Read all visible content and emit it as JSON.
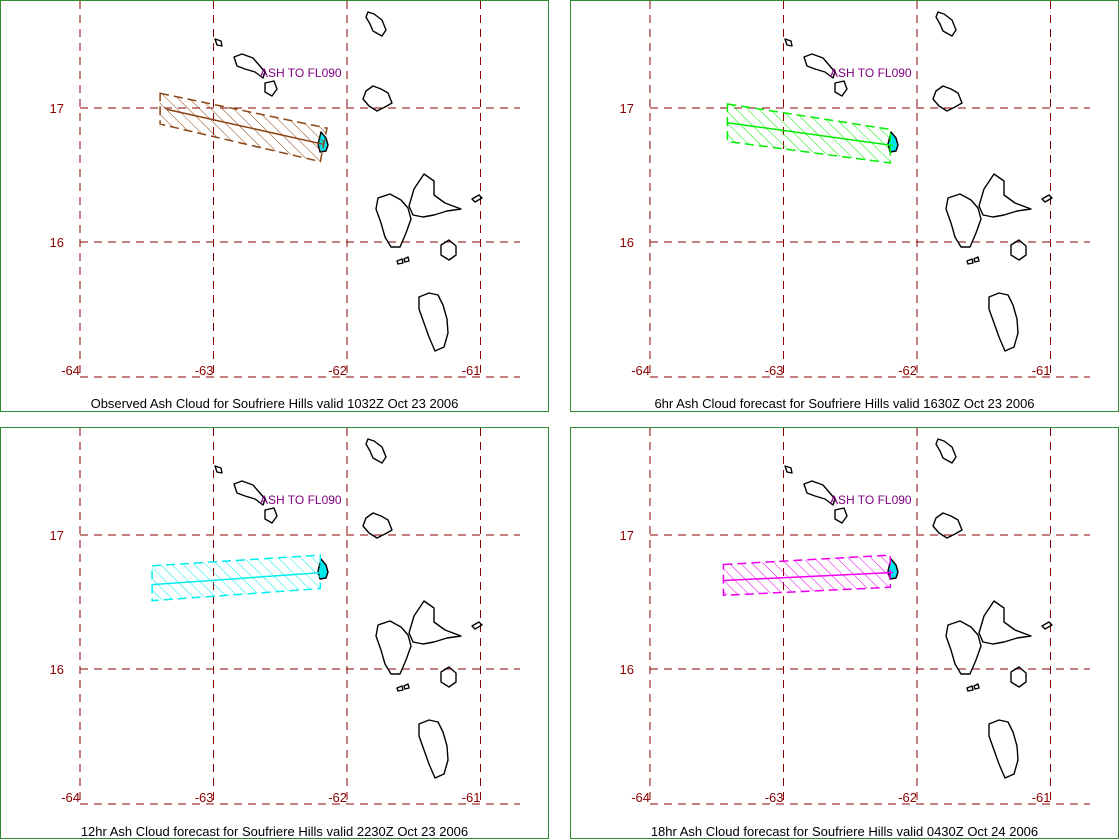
{
  "map": {
    "lon_ticks": [
      "-64",
      "-63",
      "-62",
      "-61"
    ],
    "lat_ticks": [
      "17",
      "16"
    ],
    "lon_values": [
      -64,
      -63,
      -62,
      -61
    ],
    "lat_values": [
      17,
      16
    ],
    "annotation": "ASH TO FL090",
    "colors": {
      "grid": "#8b0000",
      "tick_label": "#8b0000",
      "annotation": "#800080",
      "land": "#000000",
      "volcano": "#00e5ee",
      "panel_border": "#2e8b2e"
    }
  },
  "panels": [
    {
      "title": "Observed Ash Cloud for Soufriere  Hills valid 1032Z Oct 23 2006",
      "color": "#8b4513",
      "polygon": [
        [
          -63.4,
          17.11
        ],
        [
          -62.15,
          16.85
        ],
        [
          -62.2,
          16.6
        ],
        [
          -63.4,
          16.88
        ]
      ],
      "axis": [
        [
          -63.35,
          16.99
        ],
        [
          -62.18,
          16.73
        ]
      ]
    },
    {
      "title": "6hr Ash Cloud forecast for Soufriere  Hills valid 1630Z Oct 23 2006",
      "color": "#00ee00",
      "polygon": [
        [
          -63.42,
          17.03
        ],
        [
          -62.2,
          16.84
        ],
        [
          -62.2,
          16.59
        ],
        [
          -63.42,
          16.75
        ]
      ],
      "axis": [
        [
          -63.42,
          16.89
        ],
        [
          -62.18,
          16.72
        ]
      ]
    },
    {
      "title": "12hr Ash Cloud forecast for Soufriere  Hills valid 2230Z Oct 23 2006",
      "color": "#00eeee",
      "polygon": [
        [
          -63.46,
          16.77
        ],
        [
          -62.2,
          16.85
        ],
        [
          -62.2,
          16.6
        ],
        [
          -63.46,
          16.51
        ]
      ],
      "axis": [
        [
          -63.46,
          16.63
        ],
        [
          -62.18,
          16.72
        ]
      ]
    },
    {
      "title": "18hr Ash Cloud forecast for Soufriere  Hills valid 0430Z Oct 24 2006",
      "color": "#ee00ee",
      "polygon": [
        [
          -63.45,
          16.78
        ],
        [
          -62.2,
          16.85
        ],
        [
          -62.2,
          16.61
        ],
        [
          -63.45,
          16.55
        ]
      ],
      "axis": [
        [
          -63.45,
          16.66
        ],
        [
          -62.18,
          16.72
        ]
      ]
    }
  ]
}
